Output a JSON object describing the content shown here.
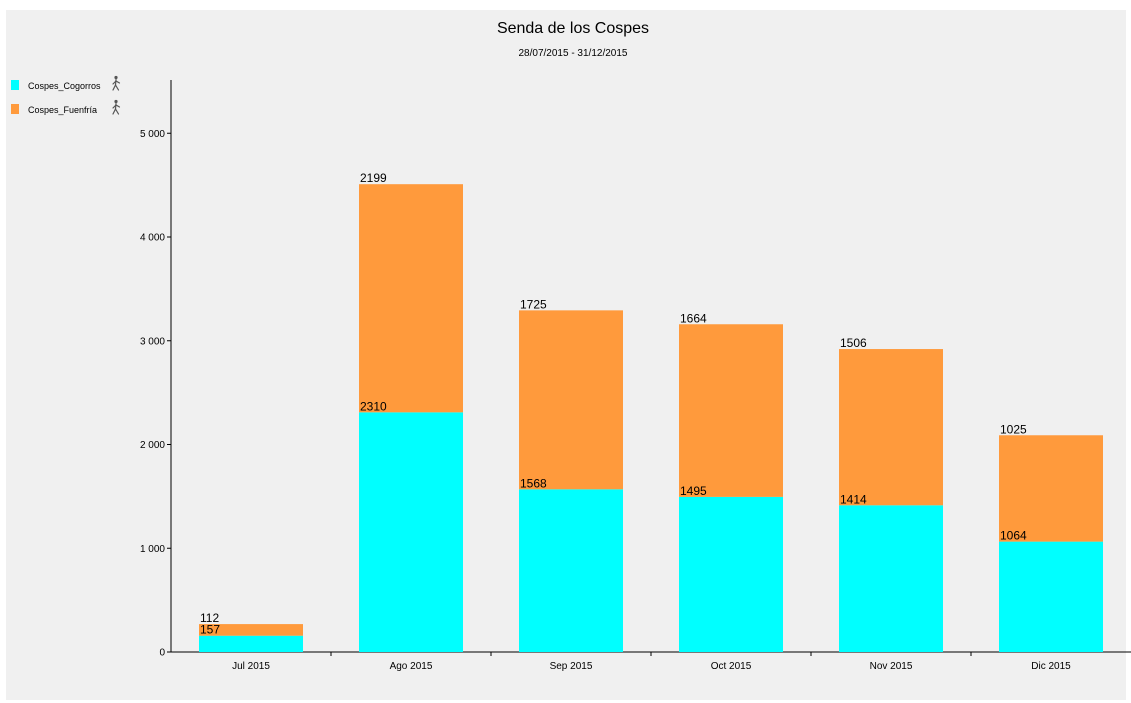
{
  "chart_data": {
    "type": "bar",
    "stacked": true,
    "title": "Senda de los Cospes",
    "subtitle": "28/07/2015 - 31/12/2015",
    "categories": [
      "Jul 2015",
      "Ago 2015",
      "Sep 2015",
      "Oct 2015",
      "Nov 2015",
      "Dic 2015"
    ],
    "series": [
      {
        "name": "Cospes_Cogorros",
        "color": "#00ffff",
        "values": [
          157,
          2310,
          1568,
          1495,
          1414,
          1064
        ]
      },
      {
        "name": "Cospes_Fuenfría",
        "color": "#ff9a3c",
        "values": [
          112,
          2199,
          1725,
          1664,
          1506,
          1025
        ]
      }
    ],
    "ylim": [
      0,
      5500
    ],
    "yticks": [
      0,
      1000,
      2000,
      3000,
      4000,
      5000
    ],
    "ytick_labels": [
      "0",
      "1 000",
      "2 000",
      "3 000",
      "4 000",
      "5 000"
    ],
    "grid": false,
    "legend_position": "top-left",
    "legend_icon": "walking-person-icon"
  }
}
